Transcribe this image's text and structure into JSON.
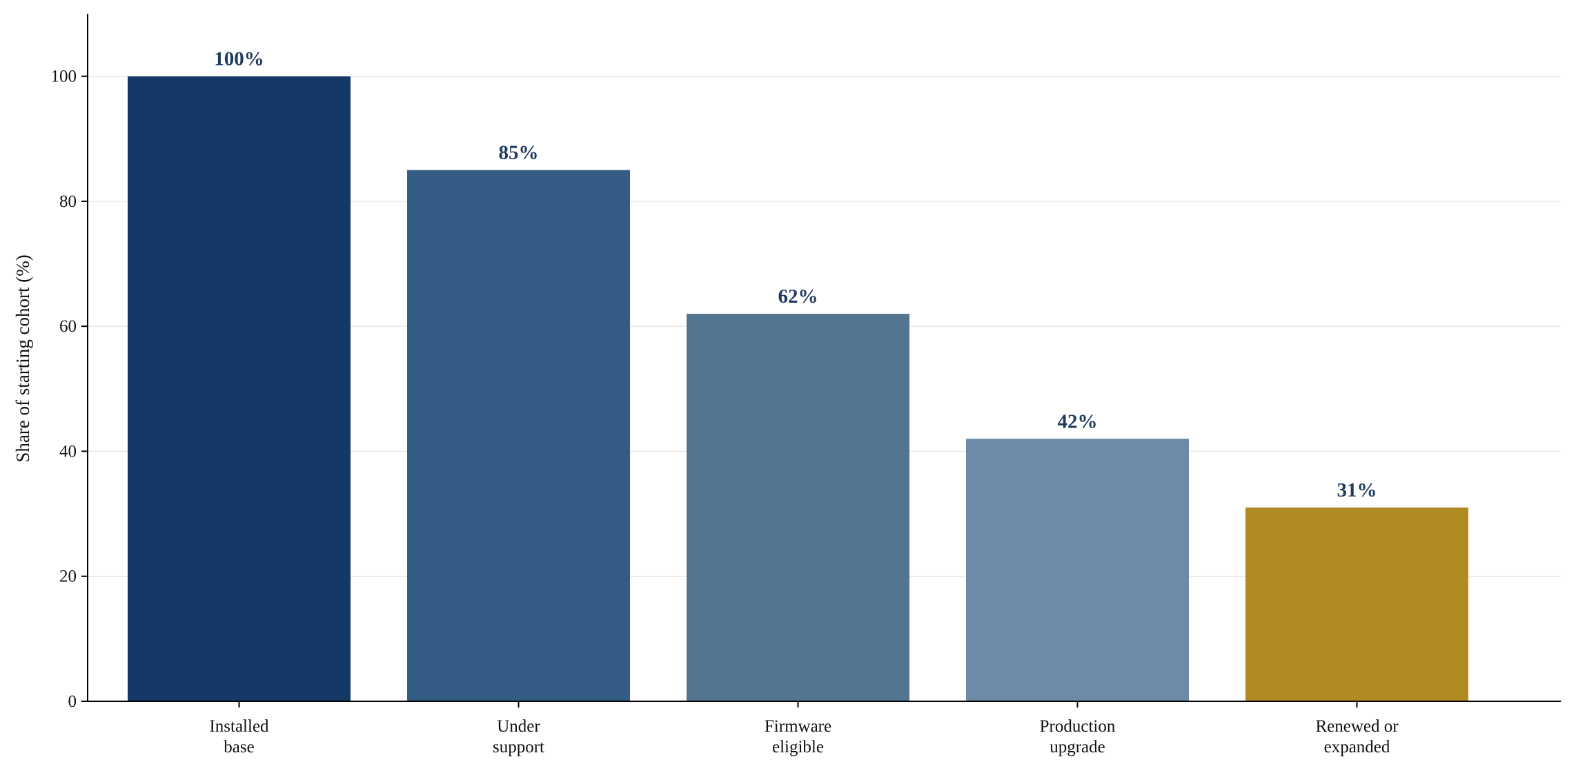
{
  "chart_data": {
    "type": "bar",
    "categories": [
      [
        "Installed",
        "base"
      ],
      [
        "Under",
        "support"
      ],
      [
        "Firmware",
        "eligible"
      ],
      [
        "Production",
        "upgrade"
      ],
      [
        "Renewed or",
        "expanded"
      ]
    ],
    "values": [
      100,
      85,
      62,
      42,
      31
    ],
    "data_labels": [
      "100%",
      "85%",
      "62%",
      "42%",
      "31%"
    ],
    "bar_colors": [
      "#143966",
      "#335d84",
      "#527591",
      "#6c8ba7",
      "#b28a22"
    ],
    "label_color": "#1f3a5f",
    "ylabel": "Share of starting cohort (%)",
    "ylim": [
      0,
      110
    ],
    "yticks": [
      0,
      20,
      40,
      60,
      80,
      100
    ],
    "grid": true,
    "grid_axis": "y"
  }
}
